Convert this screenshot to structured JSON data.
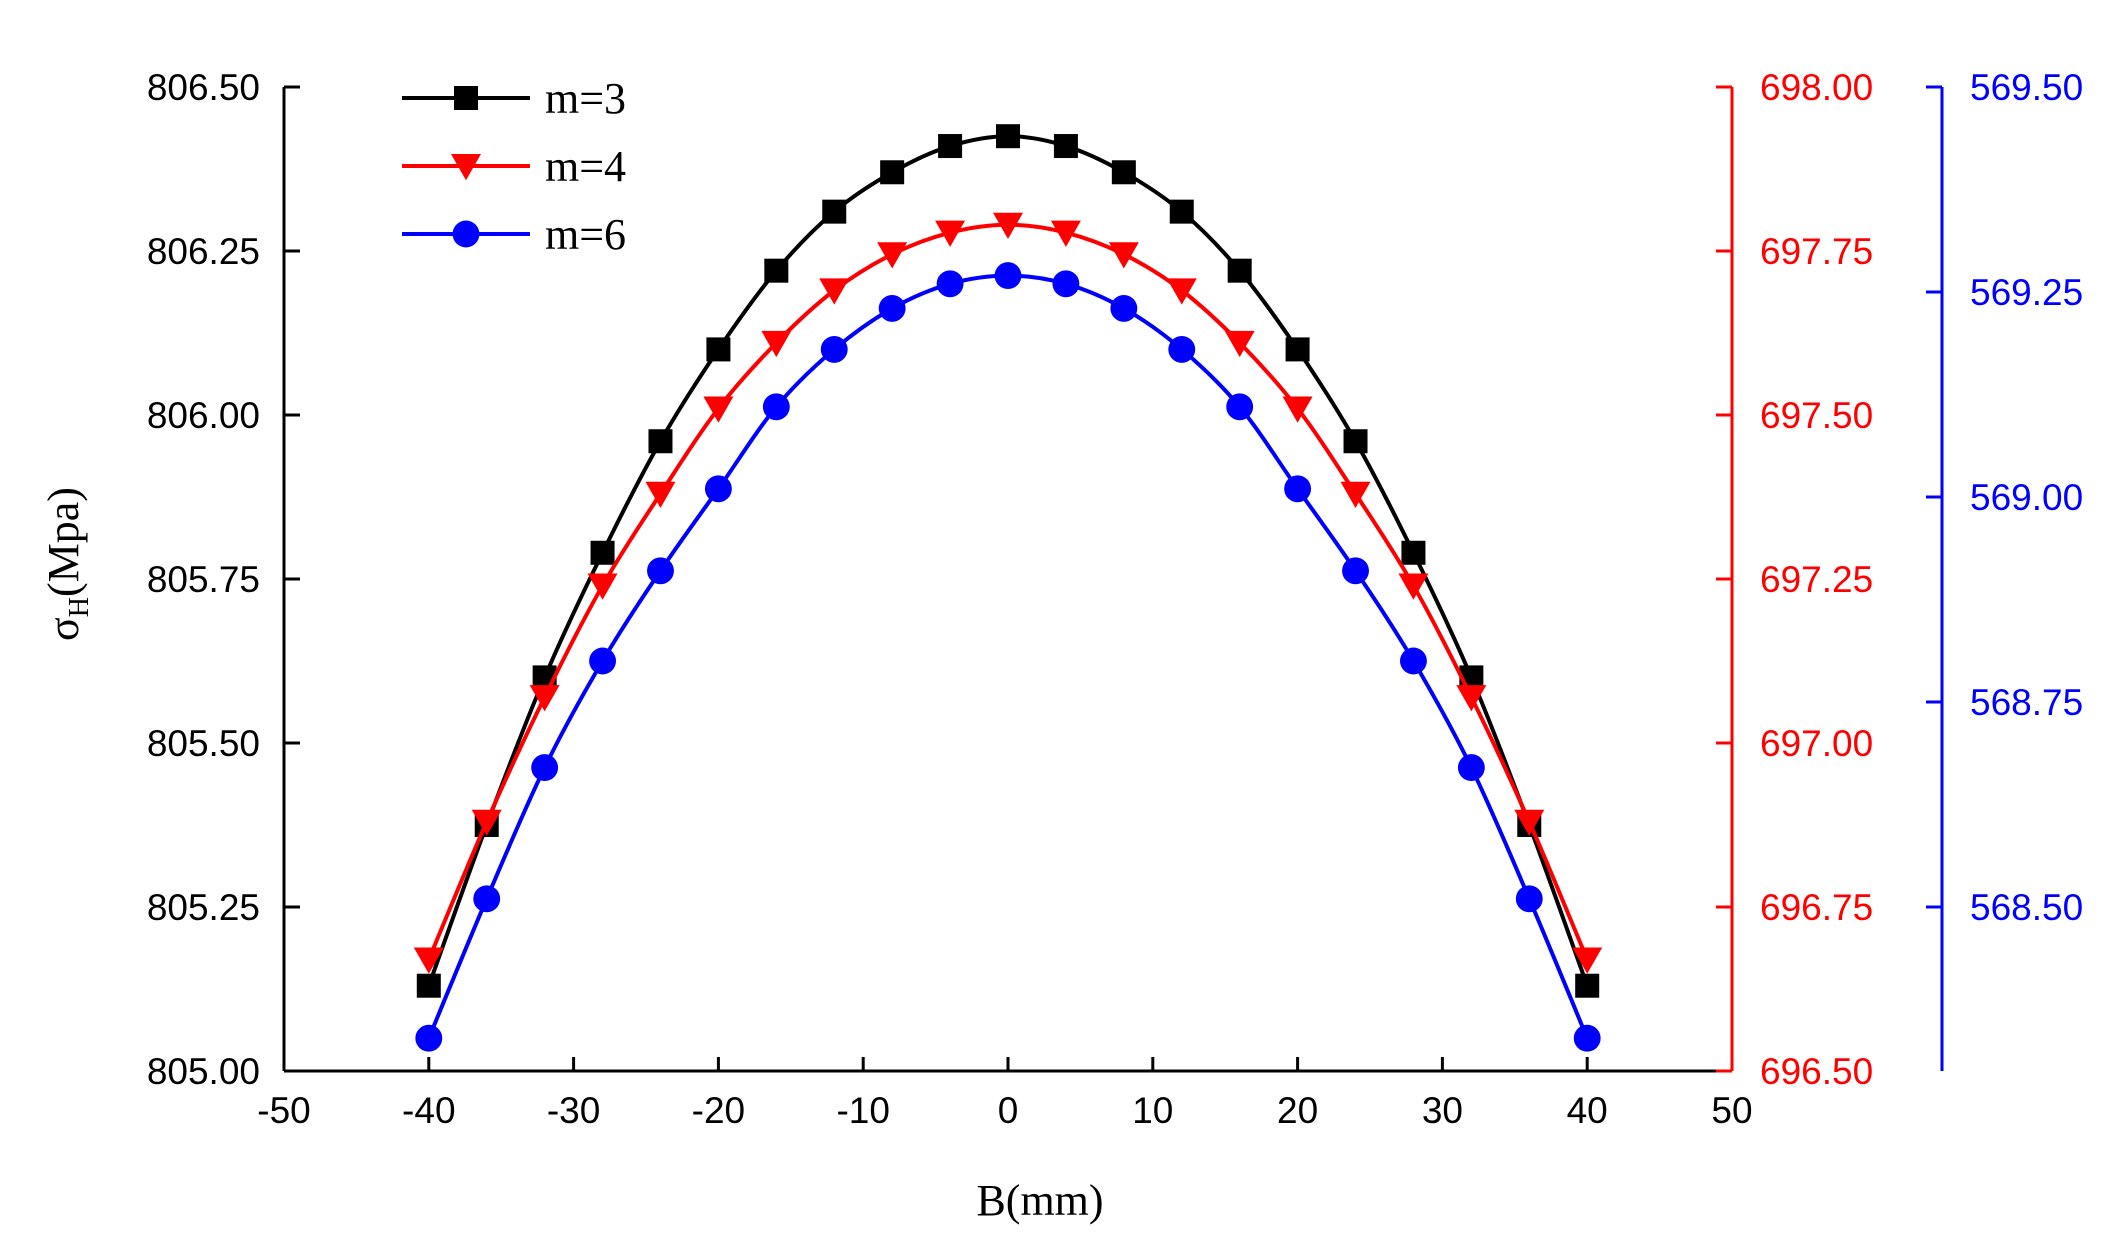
{
  "chart_data": {
    "type": "line",
    "xlabel": "B(mm)",
    "ylabel": {
      "main": "σ",
      "subscript": "H",
      "rest": "(Mpa)"
    },
    "xlim": [
      -50,
      50
    ],
    "xticks": [
      "-50",
      "-40",
      "-30",
      "-20",
      "-10",
      "0",
      "10",
      "20",
      "30",
      "40",
      "50"
    ],
    "axes": [
      {
        "id": "left",
        "color": "#000000",
        "ylim": [
          805.0,
          806.5
        ],
        "ticks": [
          "805.00",
          "805.25",
          "805.50",
          "805.75",
          "806.00",
          "806.25",
          "806.50"
        ]
      },
      {
        "id": "right1",
        "color": "#ff0000",
        "ylim": [
          696.5,
          698.0
        ],
        "ticks": [
          "696.50",
          "696.75",
          "697.00",
          "697.25",
          "697.50",
          "697.75",
          "698.00"
        ]
      },
      {
        "id": "right2",
        "color": "#0000ff",
        "ylim": [
          568.3,
          569.5
        ],
        "ticks": [
          "568.50",
          "568.75",
          "569.00",
          "569.25",
          "569.50"
        ]
      }
    ],
    "x": [
      -40,
      -36,
      -32,
      -28,
      -24,
      -20,
      -16,
      -12,
      -8,
      -4,
      0,
      4,
      8,
      12,
      16,
      20,
      24,
      28,
      32,
      36,
      40
    ],
    "series": [
      {
        "name": "m=3",
        "axis": "left",
        "color": "#000000",
        "marker": "square",
        "values": [
          805.13,
          805.375,
          805.6,
          805.79,
          805.96,
          806.1,
          806.22,
          806.31,
          806.37,
          806.41,
          806.425,
          806.41,
          806.37,
          806.31,
          806.22,
          806.1,
          805.96,
          805.79,
          805.6,
          805.375,
          805.13
        ]
      },
      {
        "name": "m=4",
        "axis": "right1",
        "color": "#ff0000",
        "marker": "triangle-down",
        "values": [
          696.67,
          696.88,
          697.07,
          697.24,
          697.38,
          697.51,
          697.61,
          697.69,
          697.745,
          697.778,
          697.79,
          697.778,
          697.745,
          697.69,
          697.61,
          697.51,
          697.38,
          697.24,
          697.07,
          696.88,
          696.67
        ]
      },
      {
        "name": "m=6",
        "axis": "right2",
        "color": "#0000ff",
        "marker": "circle",
        "values": [
          568.34,
          568.51,
          568.67,
          568.8,
          568.91,
          569.01,
          569.11,
          569.18,
          569.23,
          569.26,
          569.27,
          569.26,
          569.23,
          569.18,
          569.11,
          569.01,
          568.91,
          568.8,
          568.67,
          568.51,
          568.34
        ]
      }
    ],
    "legend": {
      "position": "top-left"
    }
  }
}
